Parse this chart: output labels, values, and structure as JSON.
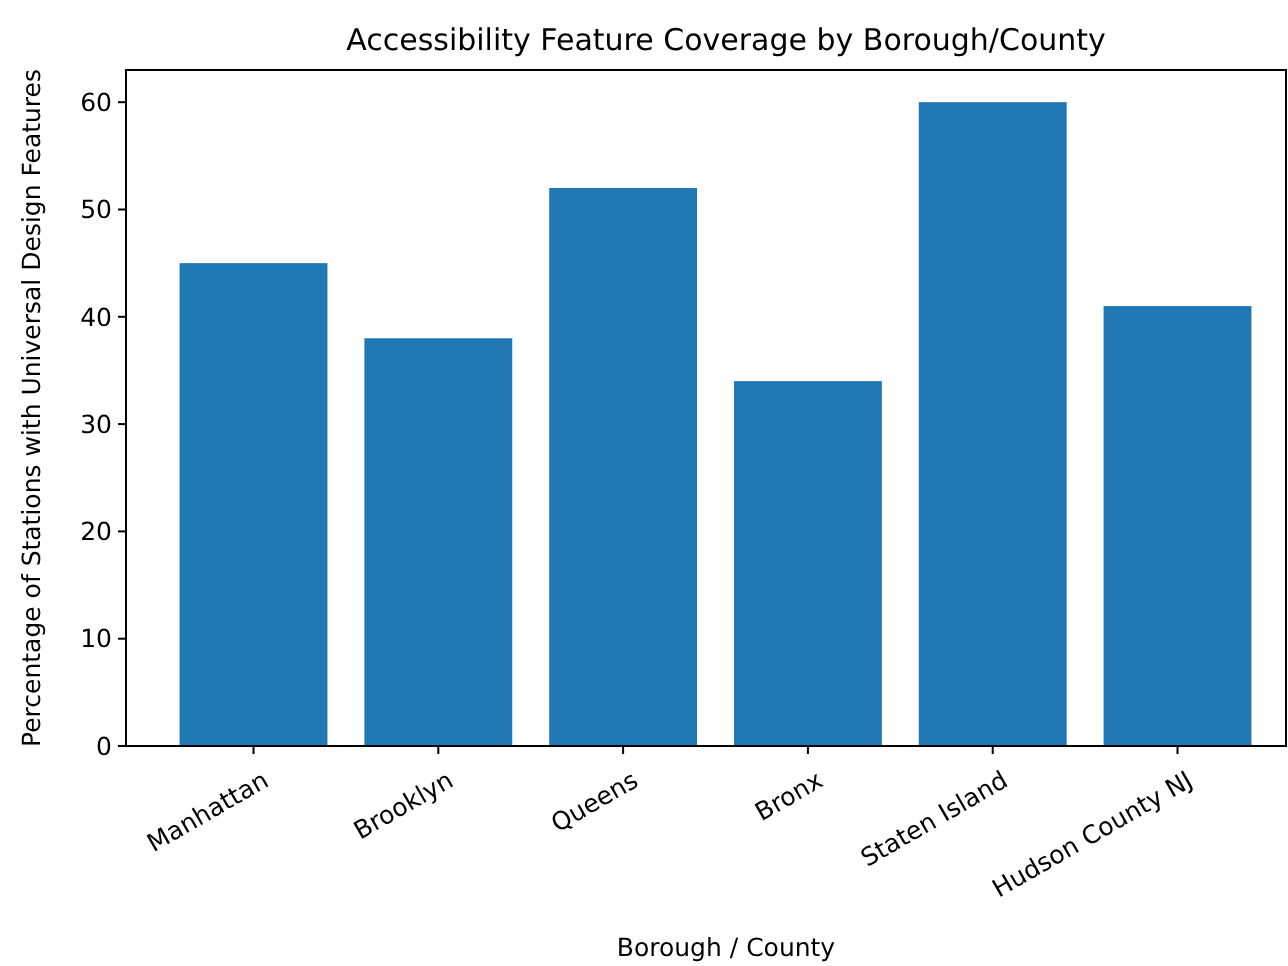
{
  "chart_data": {
    "type": "bar",
    "title": "Accessibility Feature Coverage by Borough/County",
    "xlabel": "Borough / County",
    "ylabel": "Percentage of Stations with Universal Design Features",
    "categories": [
      "Manhattan",
      "Brooklyn",
      "Queens",
      "Bronx",
      "Staten Island",
      "Hudson County NJ"
    ],
    "values": [
      45,
      38,
      52,
      34,
      60,
      41
    ],
    "color": "#1f77b4",
    "ylim": [
      0,
      63
    ],
    "yticks": [
      0,
      10,
      20,
      30,
      40,
      50,
      60
    ],
    "grid": false
  }
}
